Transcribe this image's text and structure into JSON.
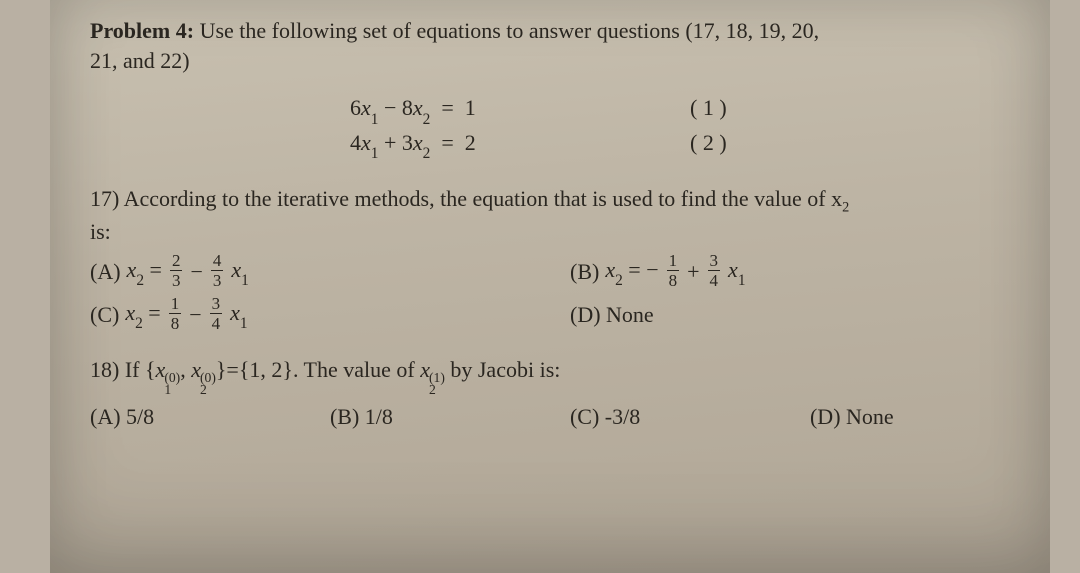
{
  "colors": {
    "paper_bg_top": "#c8c0b0",
    "paper_bg_bottom": "#b0a696",
    "outer_bg": "#b9b0a3",
    "text": "#2a2620"
  },
  "typography": {
    "family": "Times New Roman",
    "base_size_pt": 17
  },
  "header": {
    "label": "Problem 4:",
    "text_a": " Use the following set of equations to answer questions (17, 18, 19, 20,",
    "text_b": "21, and 22)"
  },
  "equations": {
    "eq1": "6x₁ − 8x₂ = 1",
    "eq1_html": "6<span class='it'>x</span><sub>1</sub> − 8<span class='it'>x</span><sub>2</sub> = 1",
    "eq1_num": "( 1 )",
    "eq2": "4x₁ + 3x₂ = 2",
    "eq2_html": "4<span class='it'>x</span><sub>1</sub> + 3<span class='it'>x</span><sub>2</sub> = 2",
    "eq2_num": "( 2 )"
  },
  "q17": {
    "prompt_a": "17) According to the iterative methods, the equation that is used to find the value of x",
    "prompt_sub": "2",
    "prompt_b": "is:",
    "A": {
      "label": "(A) ",
      "lhs": "x₂ = ",
      "f1": {
        "n": "2",
        "d": "3"
      },
      "mid": " − ",
      "f2": {
        "n": "4",
        "d": "3"
      },
      "tail": "x₁"
    },
    "B": {
      "label": "(B) ",
      "lhs": "x₂ = −",
      "f1": {
        "n": "1",
        "d": "8"
      },
      "mid": " + ",
      "f2": {
        "n": "3",
        "d": "4"
      },
      "tail": "x₁"
    },
    "C": {
      "label": "(C) ",
      "lhs": "x₂ = ",
      "f1": {
        "n": "1",
        "d": "8"
      },
      "mid": " − ",
      "f2": {
        "n": "3",
        "d": "4"
      },
      "tail": "x₁"
    },
    "D": {
      "label": "(D) None"
    }
  },
  "q18": {
    "prompt_pre": "18)  If {",
    "x1": "x",
    "x1_sup": "(0)",
    "x1_sub": "1",
    "comma": ", ",
    "x2": "x",
    "x2_sup": "(0)",
    "x2_sub": "2",
    "set": "}={1, 2}. The value of ",
    "xv": "x",
    "xv_sup": "(1)",
    "xv_sub": "2",
    "tail": " by Jacobi is:",
    "A": "(A)  5/8",
    "B": "(B) 1/8",
    "C": "(C) -3/8",
    "D": "(D) None"
  }
}
